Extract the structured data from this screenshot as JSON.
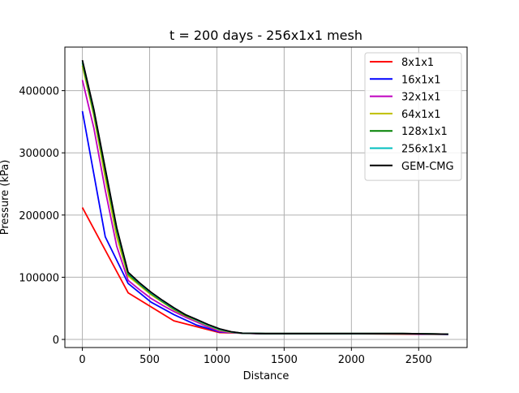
{
  "chart_data": {
    "type": "line",
    "title": "t = 200 days - 256x1x1 mesh",
    "xlabel": "Distance",
    "ylabel": "Pressure (kPa)",
    "xlim": [
      -130,
      2860
    ],
    "ylim": [
      -13000,
      470000
    ],
    "xticks": [
      0,
      500,
      1000,
      1500,
      2000,
      2500
    ],
    "yticks": [
      0,
      100000,
      200000,
      300000,
      400000
    ],
    "xtick_labels": [
      "0",
      "500",
      "1000",
      "1500",
      "2000",
      "2500"
    ],
    "ytick_labels": [
      "0",
      "100000",
      "200000",
      "300000",
      "400000"
    ],
    "grid": true,
    "legend_position": "top-right",
    "series": [
      {
        "name": "8x1x1",
        "color": "#ff0000",
        "x": [
          0,
          340,
          680,
          1020,
          1360,
          1700,
          2040,
          2380,
          2720
        ],
        "y": [
          212000,
          75000,
          30000,
          11000,
          9000,
          9000,
          9000,
          8500,
          8000
        ]
      },
      {
        "name": "16x1x1",
        "color": "#0000ff",
        "x": [
          0,
          170,
          340,
          510,
          680,
          850,
          1020,
          1190,
          1360,
          1700,
          2040,
          2380,
          2720
        ],
        "y": [
          367000,
          165000,
          90000,
          60000,
          40000,
          23000,
          12000,
          10000,
          9000,
          9000,
          9000,
          9000,
          8000
        ]
      },
      {
        "name": "32x1x1",
        "color": "#bf00bf",
        "x": [
          0,
          85,
          170,
          255,
          340,
          425,
          510,
          595,
          680,
          765,
          850,
          935,
          1020,
          1105,
          1190,
          1360,
          1700,
          2040,
          2380,
          2720
        ],
        "y": [
          417000,
          340000,
          240000,
          150000,
          95000,
          80000,
          66000,
          55000,
          45000,
          36000,
          28000,
          20000,
          13000,
          11000,
          10000,
          9500,
          9500,
          9500,
          9500,
          8500
        ]
      },
      {
        "name": "64x1x1",
        "color": "#bfbf00",
        "x": [
          0,
          85,
          170,
          255,
          340,
          425,
          510,
          595,
          680,
          765,
          850,
          935,
          1020,
          1105,
          1190,
          1360,
          1700,
          2040,
          2380,
          2720
        ],
        "y": [
          440000,
          360000,
          260000,
          165000,
          102000,
          87000,
          72000,
          60000,
          48000,
          38000,
          30000,
          22000,
          15000,
          11500,
          10000,
          9500,
          9500,
          9500,
          9500,
          8500
        ]
      },
      {
        "name": "128x1x1",
        "color": "#008000",
        "x": [
          0,
          85,
          170,
          255,
          340,
          425,
          510,
          595,
          680,
          765,
          850,
          935,
          1020,
          1105,
          1190,
          1360,
          1700,
          2040,
          2380,
          2720
        ],
        "y": [
          445000,
          365000,
          270000,
          175000,
          105000,
          89000,
          74000,
          61000,
          49000,
          39000,
          31000,
          23000,
          16000,
          12000,
          10000,
          9500,
          9500,
          9500,
          9500,
          8500
        ]
      },
      {
        "name": "256x1x1",
        "color": "#00bfbf",
        "x": [
          0,
          85,
          170,
          255,
          340,
          425,
          510,
          595,
          680,
          765,
          850,
          935,
          1020,
          1105,
          1190,
          1360,
          1700,
          2040,
          2380,
          2720
        ],
        "y": [
          448000,
          368000,
          274000,
          178000,
          107000,
          90000,
          75000,
          62000,
          50000,
          40000,
          31000,
          23000,
          16000,
          12000,
          10000,
          9500,
          9500,
          9500,
          9500,
          8500
        ]
      },
      {
        "name": "GEM-CMG",
        "color": "#000000",
        "x": [
          0,
          85,
          170,
          255,
          340,
          425,
          510,
          595,
          680,
          765,
          850,
          935,
          1020,
          1105,
          1190,
          1360,
          1700,
          2040,
          2380,
          2720
        ],
        "y": [
          449000,
          370000,
          275000,
          180000,
          108000,
          91000,
          76000,
          63000,
          51000,
          40000,
          32000,
          24000,
          17000,
          12500,
          10000,
          9500,
          9500,
          9500,
          9500,
          8500
        ]
      }
    ]
  }
}
